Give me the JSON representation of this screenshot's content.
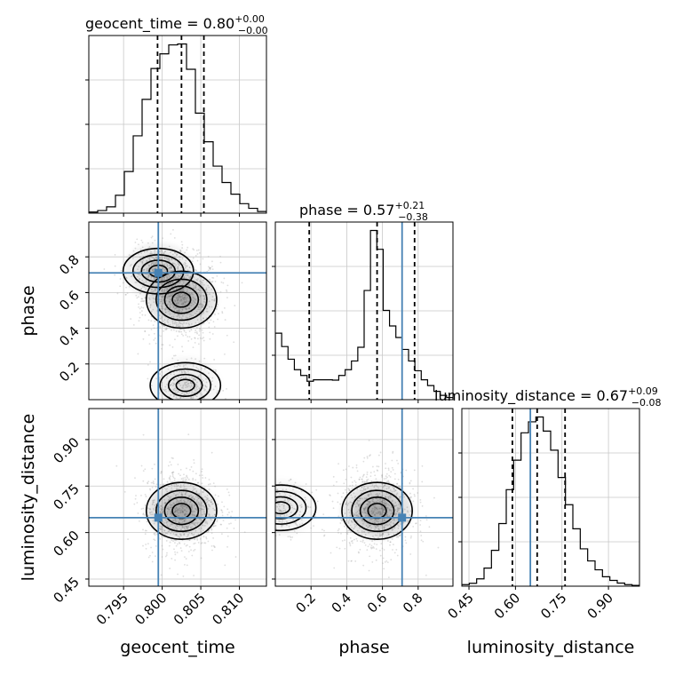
{
  "chart_data": {
    "type": "corner",
    "parameters": [
      "geocent_time",
      "phase",
      "luminosity_distance"
    ],
    "colors": {
      "truth": "#4682b4",
      "hist": "#000000",
      "grid": "#c8c8c8",
      "sample": "#a0a0a0"
    },
    "titles": [
      {
        "param": "geocent_time",
        "name": "geocent_time",
        "value": "0.80",
        "plus": "+0.00",
        "minus": "−0.00"
      },
      {
        "param": "phase",
        "name": "phase",
        "value": "0.57",
        "plus": "+0.21",
        "minus": "−0.38"
      },
      {
        "param": "luminosity_distance",
        "name": "luminosity_distance",
        "value": "0.67",
        "plus": "+0.09",
        "minus": "−0.08"
      }
    ],
    "ranges": {
      "geocent_time": [
        0.7905,
        0.8135
      ],
      "phase": [
        0.0,
        0.995
      ],
      "luminosity_distance": [
        0.427,
        1.0
      ]
    },
    "truths": {
      "geocent_time": 0.7995,
      "phase": 0.71,
      "luminosity_distance": 0.648
    },
    "quantiles": {
      "geocent_time": [
        0.7994,
        0.8025,
        0.8054
      ],
      "phase": [
        0.19,
        0.57,
        0.78
      ],
      "luminosity_distance": [
        0.59,
        0.67,
        0.76
      ]
    },
    "x_ticks": {
      "geocent_time": {
        "values": [
          0.795,
          0.8,
          0.805,
          0.81
        ],
        "labels": [
          "0.795",
          "0.800",
          "0.805",
          "0.810"
        ]
      },
      "phase": {
        "values": [
          0.2,
          0.4,
          0.6,
          0.8
        ],
        "labels": [
          "0.2",
          "0.4",
          "0.6",
          "0.8"
        ]
      },
      "luminosity_distance": {
        "values": [
          0.45,
          0.6,
          0.75,
          0.9
        ],
        "labels": [
          "0.45",
          "0.60",
          "0.75",
          "0.90"
        ]
      }
    },
    "y_ticks": {
      "phase": {
        "values": [
          0.2,
          0.4,
          0.6,
          0.8
        ],
        "labels": [
          "0.2",
          "0.4",
          "0.6",
          "0.8"
        ]
      },
      "luminosity_distance": {
        "values": [
          0.45,
          0.6,
          0.75,
          0.9
        ],
        "labels": [
          "0.45",
          "0.60",
          "0.75",
          "0.90"
        ]
      }
    },
    "xlabels": {
      "geocent_time": "geocent_time",
      "phase": "phase",
      "luminosity_distance": "luminosity_distance"
    },
    "ylabels": {
      "phase": "phase",
      "luminosity_distance": "luminosity_distance"
    },
    "histograms": {
      "geocent_time": [
        0.6,
        1.4,
        3.4,
        9.6,
        22.4,
        41.6,
        61.2,
        77.8,
        85.7,
        90.5,
        91.0,
        77.4,
        53.8,
        38.4,
        25.3,
        16.5,
        10.2,
        5.1,
        2.6,
        0.9
      ],
      "phase": [
        18.4,
        14.7,
        11.2,
        8.3,
        6.7,
        5.1,
        5.5,
        5.5,
        5.5,
        5.4,
        6.7,
        8.3,
        10.7,
        14.5,
        30.2,
        46.8,
        41.6,
        24.7,
        20.4,
        17.2,
        13.9,
        10.7,
        8.0,
        5.5,
        3.9,
        2.3,
        1.2,
        0.6
      ],
      "luminosity_distance": [
        0.8,
        1.5,
        3.8,
        9.4,
        18.6,
        32.5,
        50.1,
        65.4,
        79.6,
        85.3,
        87.8,
        80.5,
        70.6,
        56.4,
        42.3,
        29.8,
        19.4,
        13.1,
        8.5,
        4.9,
        3.0,
        1.6,
        0.8,
        0.4
      ]
    },
    "density_centers": {
      "phase_vs_geocent_time": [
        {
          "x": 0.8025,
          "y": 0.56,
          "weight": 1.0
        },
        {
          "x": 0.7995,
          "y": 0.72,
          "weight": 0.6
        },
        {
          "x": 0.803,
          "y": 0.08,
          "weight": 0.35
        }
      ],
      "luminosity_distance_vs_geocent_time": [
        {
          "x": 0.8025,
          "y": 0.67,
          "weight": 1.0
        }
      ],
      "luminosity_distance_vs_phase": [
        {
          "x": 0.57,
          "y": 0.67,
          "weight": 1.0
        },
        {
          "x": 0.03,
          "y": 0.68,
          "weight": 0.3
        }
      ]
    },
    "grid": true
  }
}
